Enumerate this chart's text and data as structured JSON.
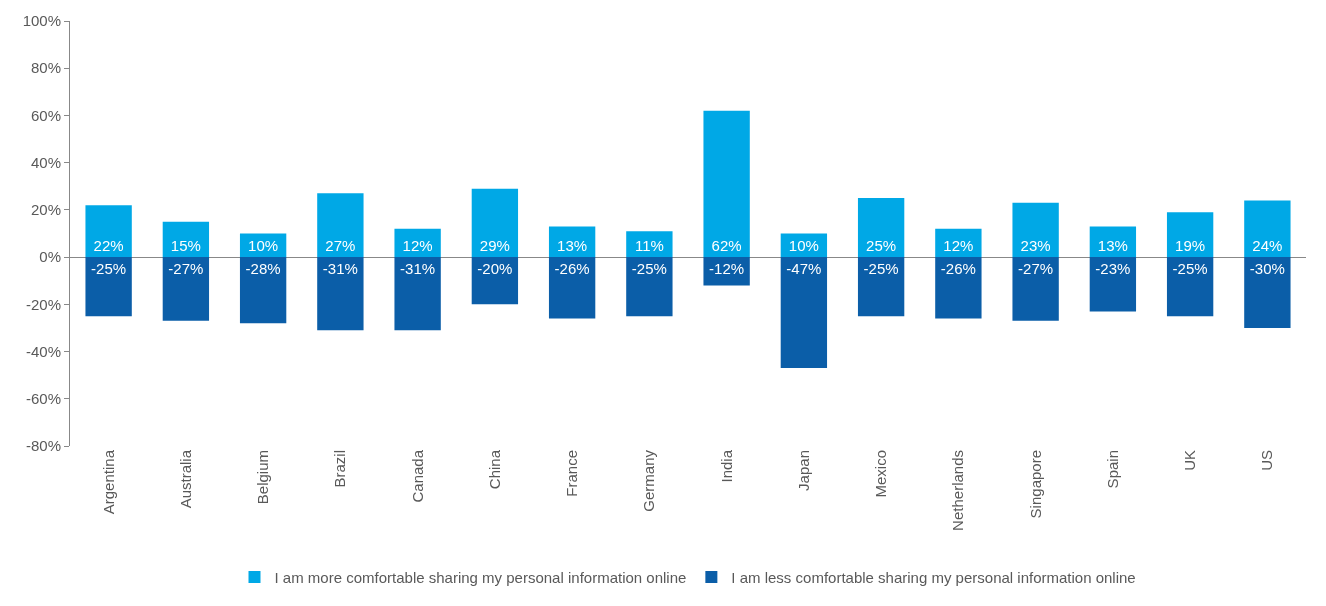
{
  "chart_data": {
    "type": "bar",
    "stacked": true,
    "categories": [
      "Argentina",
      "Australia",
      "Belgium",
      "Brazil",
      "Canada",
      "China",
      "France",
      "Germany",
      "India",
      "Japan",
      "Mexico",
      "Netherlands",
      "Singapore",
      "Spain",
      "UK",
      "US"
    ],
    "series": [
      {
        "name": "I am more comfortable sharing my personal information online",
        "color": "#00a8e6",
        "values": [
          22,
          15,
          10,
          27,
          12,
          29,
          13,
          11,
          62,
          10,
          25,
          12,
          23,
          13,
          19,
          24
        ],
        "value_labels": [
          "22%",
          "15%",
          "10%",
          "27%",
          "12%",
          "29%",
          "13%",
          "11%",
          "62%",
          "10%",
          "25%",
          "12%",
          "23%",
          "13%",
          "19%",
          "24%"
        ]
      },
      {
        "name": "I am less comfortable sharing my personal information online",
        "color": "#0b5ea8",
        "values": [
          -25,
          -27,
          -28,
          -31,
          -31,
          -20,
          -26,
          -25,
          -12,
          -47,
          -25,
          -26,
          -27,
          -23,
          -25,
          -30
        ],
        "value_labels": [
          "-25%",
          "-27%",
          "-28%",
          "-31%",
          "-31%",
          "-20%",
          "-26%",
          "-25%",
          "-12%",
          "-47%",
          "-25%",
          "-26%",
          "-27%",
          "-23%",
          "-25%",
          "-30%"
        ]
      }
    ],
    "ylim": [
      -80,
      100
    ],
    "yticks": [
      {
        "value": -80,
        "label": "-80%"
      },
      {
        "value": -60,
        "label": "-60%"
      },
      {
        "value": -40,
        "label": "-40%"
      },
      {
        "value": -20,
        "label": "-20%"
      },
      {
        "value": 0,
        "label": "0%"
      },
      {
        "value": 20,
        "label": "20%"
      },
      {
        "value": 40,
        "label": "40%"
      },
      {
        "value": 60,
        "label": "60%"
      },
      {
        "value": 80,
        "label": "80%"
      },
      {
        "value": 100,
        "label": "100%"
      }
    ],
    "legend": "bottom"
  }
}
